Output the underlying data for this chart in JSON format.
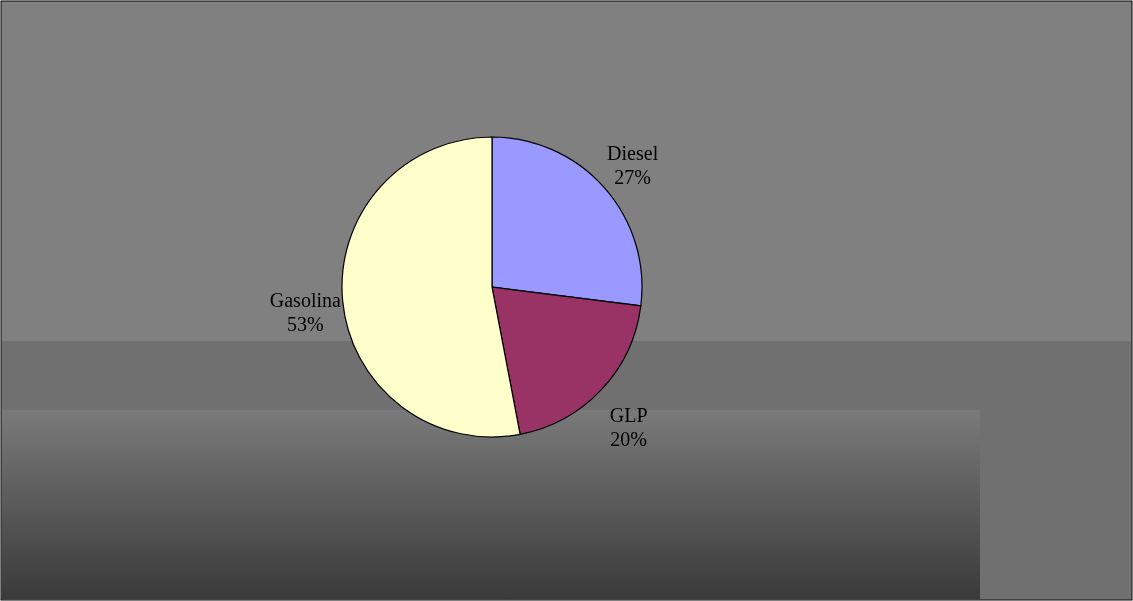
{
  "chart_data": {
    "type": "pie",
    "categories": [
      "Diesel",
      "GLP",
      "Gasolina"
    ],
    "values": [
      27,
      20,
      53
    ],
    "value_labels": [
      "27%",
      "20%",
      "53%"
    ],
    "colors": [
      "#9999ff",
      "#993366",
      "#ffffcc"
    ]
  }
}
